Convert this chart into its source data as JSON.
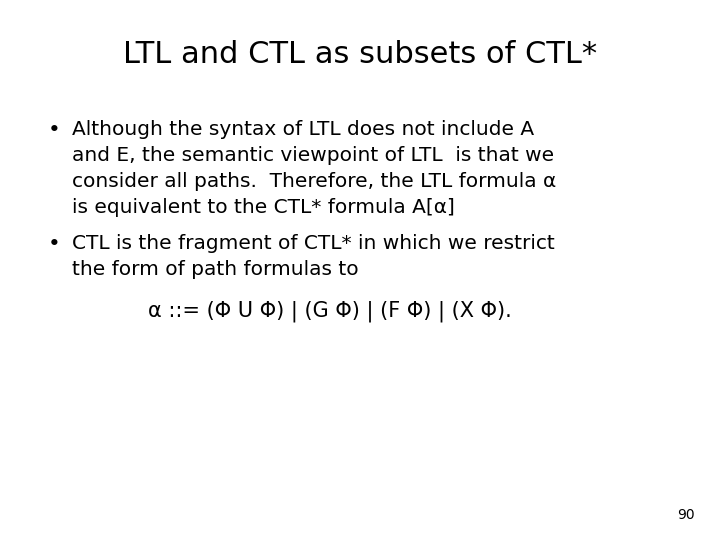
{
  "title": "LTL and CTL as subsets of CTL*",
  "bullet1_line1": "Although the syntax of LTL does not include A",
  "bullet1_line2": "and E, the semantic viewpoint of LTL  is that we",
  "bullet1_line3": "consider all paths.  Therefore, the LTL formula α",
  "bullet1_line4": "is equivalent to the CTL* formula A[α]",
  "bullet2_line1": "CTL is the fragment of CTL* in which we restrict",
  "bullet2_line2": "the form of path formulas to",
  "formula": "α ::= (Φ U Φ) | (G Φ) | (F Φ) | (X Φ).",
  "page_number": "90",
  "bg_color": "#ffffff",
  "text_color": "#000000",
  "title_fontsize": 22,
  "body_fontsize": 14.5,
  "formula_fontsize": 15,
  "page_fontsize": 10
}
